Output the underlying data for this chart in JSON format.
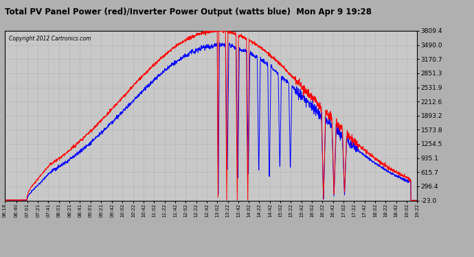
{
  "title": "Total PV Panel Power (red)/Inverter Power Output (watts blue)  Mon Apr 9 19:28",
  "copyright": "Copyright 2012 Cartronics.com",
  "yticks": [
    3809.4,
    3490.0,
    3170.7,
    2851.3,
    2531.9,
    2212.6,
    1893.2,
    1573.8,
    1254.5,
    935.1,
    615.7,
    296.4,
    -23.0
  ],
  "ylim": [
    -23.0,
    3809.4
  ],
  "bg_color": "#b0b0b0",
  "plot_bg": "#c8c8c8",
  "line_red": "#ff0000",
  "line_blue": "#0000ff",
  "xtick_labels": [
    "06:18",
    "06:40",
    "07:01",
    "07:21",
    "07:41",
    "08:01",
    "08:21",
    "08:41",
    "09:01",
    "09:21",
    "09:42",
    "10:02",
    "10:22",
    "10:42",
    "11:02",
    "11:22",
    "11:42",
    "12:02",
    "12:22",
    "12:42",
    "13:02",
    "13:22",
    "13:42",
    "14:02",
    "14:22",
    "14:42",
    "15:02",
    "15:22",
    "15:42",
    "16:02",
    "16:22",
    "16:42",
    "17:02",
    "17:22",
    "17:42",
    "18:02",
    "18:22",
    "18:42",
    "19:02",
    "19:22"
  ]
}
